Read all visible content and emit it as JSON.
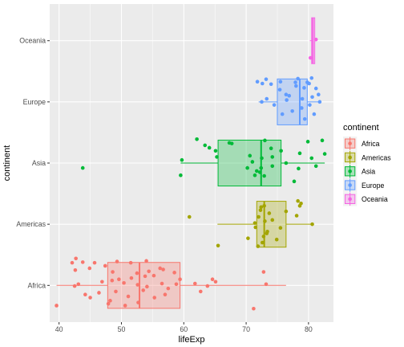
{
  "chart_data": {
    "type": "boxplot",
    "xlabel": "lifeExp",
    "ylabel": "continent",
    "xlim": [
      38.5,
      84
    ],
    "x_ticks": [
      40,
      50,
      60,
      70,
      80
    ],
    "categories": [
      "Africa",
      "Americas",
      "Asia",
      "Europe",
      "Oceania"
    ],
    "legend": {
      "title": "continent",
      "position": "right"
    },
    "series": [
      {
        "name": "Africa",
        "color": "#F8766D",
        "box": {
          "whisker_low": 39.6,
          "q1": 47.8,
          "median": 52.9,
          "q3": 59.4,
          "whisker_high": 76.4
        },
        "points": [
          [
            39.6,
            -0.33
          ],
          [
            71.2,
            -0.38
          ],
          [
            42.1,
            0.37
          ],
          [
            42.7,
            0.44
          ],
          [
            43.8,
            0.38
          ],
          [
            45.7,
            0.37
          ],
          [
            49.3,
            0.39
          ],
          [
            51.5,
            0.37
          ],
          [
            47.4,
            0.32
          ],
          [
            44.9,
            0.28
          ],
          [
            42.6,
            0.25
          ],
          [
            48.6,
            0.22
          ],
          [
            52.5,
            0.2
          ],
          [
            54.4,
            0.23
          ],
          [
            56.7,
            0.26
          ],
          [
            58.5,
            0.21
          ],
          [
            55.2,
            0.16
          ],
          [
            51.6,
            0.12
          ],
          [
            49.6,
            0.1
          ],
          [
            46.9,
            0.06
          ],
          [
            43.1,
            0.02
          ],
          [
            42.5,
            -0.01
          ],
          [
            50.4,
            0.04
          ],
          [
            52.6,
            0.01
          ],
          [
            54.1,
            -0.02
          ],
          [
            56.5,
            0.03
          ],
          [
            58.8,
            0.02
          ],
          [
            57.5,
            -0.05
          ],
          [
            53.5,
            -0.08
          ],
          [
            49.1,
            -0.1
          ],
          [
            46.4,
            -0.12
          ],
          [
            44.2,
            -0.15
          ],
          [
            51.1,
            -0.18
          ],
          [
            55.3,
            -0.2
          ],
          [
            48.2,
            -0.25
          ],
          [
            52.7,
            -0.28
          ],
          [
            50.6,
            -0.33
          ],
          [
            59.4,
            0.1
          ],
          [
            61.8,
            0.03
          ],
          [
            63.8,
            -0.01
          ],
          [
            65.1,
            0.06
          ],
          [
            64.6,
            0.1
          ],
          [
            73.2,
            0.02
          ],
          [
            72.8,
            0.22
          ],
          [
            62.7,
            -0.1
          ],
          [
            56.2,
            0.28
          ],
          [
            54.0,
            0.4
          ],
          [
            45.0,
            -0.2
          ],
          [
            47.9,
            -0.3
          ],
          [
            53.8,
            0.15
          ],
          [
            57.0,
            -0.15
          ],
          [
            48.5,
            0.08
          ]
        ]
      },
      {
        "name": "Americas",
        "color": "#A3A500",
        "box": {
          "whisker_low": 65.4,
          "q1": 71.7,
          "median": 72.9,
          "q3": 76.4,
          "whisker_high": 80.7
        },
        "points": [
          [
            60.9,
            0.12
          ],
          [
            65.5,
            -0.35
          ],
          [
            70.3,
            -0.23
          ],
          [
            71.5,
            -0.05
          ],
          [
            72.0,
            0.12
          ],
          [
            72.8,
            -0.2
          ],
          [
            72.4,
            0.28
          ],
          [
            73.0,
            0.05
          ],
          [
            73.4,
            -0.12
          ],
          [
            74.2,
            0.07
          ],
          [
            74.9,
            -0.25
          ],
          [
            72.6,
            -0.3
          ],
          [
            71.9,
            -0.36
          ],
          [
            73.7,
            0.18
          ],
          [
            75.5,
            -0.06
          ],
          [
            76.4,
            0.21
          ],
          [
            78.3,
            0.38
          ],
          [
            78.6,
            0.3
          ],
          [
            78.8,
            0.34
          ],
          [
            80.6,
            0.0
          ],
          [
            78.1,
            0.14
          ],
          [
            72.3,
            0.23
          ],
          [
            73.3,
            -0.15
          ],
          [
            71.4,
            0.02
          ],
          [
            72.9,
            0.3
          ]
        ]
      },
      {
        "name": "Asia",
        "color": "#00BA38",
        "box": {
          "whisker_low": 59.5,
          "q1": 65.5,
          "median": 72.4,
          "q3": 75.6,
          "whisker_high": 82.6
        },
        "points": [
          [
            43.8,
            -0.08
          ],
          [
            59.5,
            -0.2
          ],
          [
            59.7,
            0.05
          ],
          [
            62.1,
            0.39
          ],
          [
            63.4,
            0.29
          ],
          [
            64.1,
            0.25
          ],
          [
            65.1,
            0.2
          ],
          [
            65.3,
            0.1
          ],
          [
            67.3,
            0.33
          ],
          [
            67.7,
            0.32
          ],
          [
            70.6,
            0.12
          ],
          [
            70.2,
            -0.08
          ],
          [
            71.0,
            0.02
          ],
          [
            71.4,
            -0.2
          ],
          [
            71.7,
            -0.13
          ],
          [
            72.4,
            -0.08
          ],
          [
            72.5,
            0.08
          ],
          [
            72.9,
            -0.21
          ],
          [
            73.0,
            0.37
          ],
          [
            74.0,
            0.24
          ],
          [
            74.2,
            0.1
          ],
          [
            74.2,
            -0.05
          ],
          [
            75.6,
            0.2
          ],
          [
            76.4,
            0.0
          ],
          [
            78.4,
            -0.09
          ],
          [
            78.6,
            0.16
          ],
          [
            79.9,
            0.35
          ],
          [
            82.6,
            0.15
          ],
          [
            82.2,
            0.37
          ],
          [
            81.2,
            -0.05
          ],
          [
            80.5,
            0.08
          ],
          [
            77.7,
            -0.3
          ],
          [
            72.2,
            -0.15
          ]
        ]
      },
      {
        "name": "Europe",
        "color": "#619CFF",
        "box": {
          "whisker_low": 72.0,
          "q1": 75.0,
          "median": 78.6,
          "q3": 79.8,
          "whisker_high": 81.8
        },
        "points": [
          [
            71.8,
            0.33
          ],
          [
            72.6,
            0.3
          ],
          [
            73.2,
            0.37
          ],
          [
            74.0,
            0.29
          ],
          [
            72.5,
            0.0
          ],
          [
            73.3,
            0.05
          ],
          [
            74.5,
            -0.05
          ],
          [
            75.4,
            0.2
          ],
          [
            76.4,
            0.12
          ],
          [
            77.9,
            0.32
          ],
          [
            78.3,
            0.38
          ],
          [
            79.3,
            0.23
          ],
          [
            80.5,
            0.39
          ],
          [
            81.6,
            0.12
          ],
          [
            81.8,
            0.0
          ],
          [
            80.2,
            -0.05
          ],
          [
            80.9,
            -0.2
          ],
          [
            79.4,
            -0.28
          ],
          [
            78.9,
            -0.1
          ],
          [
            77.4,
            -0.15
          ],
          [
            76.5,
            0.03
          ],
          [
            75.8,
            -0.2
          ],
          [
            79.8,
            0.32
          ],
          [
            80.1,
            0.3
          ],
          [
            81.2,
            0.22
          ],
          [
            80.6,
            0.08
          ],
          [
            78.0,
            0.26
          ],
          [
            79.0,
            0.05
          ],
          [
            75.5,
            0.33
          ],
          [
            76.9,
            0.1
          ]
        ]
      },
      {
        "name": "Oceania",
        "color": "#F564E3",
        "box": {
          "whisker_low": 80.2,
          "q1": 80.5,
          "median": 80.7,
          "q3": 81.0,
          "whisker_high": 81.2
        },
        "points": [
          [
            80.3,
            -0.28
          ],
          [
            81.2,
            0.02
          ]
        ]
      }
    ]
  }
}
